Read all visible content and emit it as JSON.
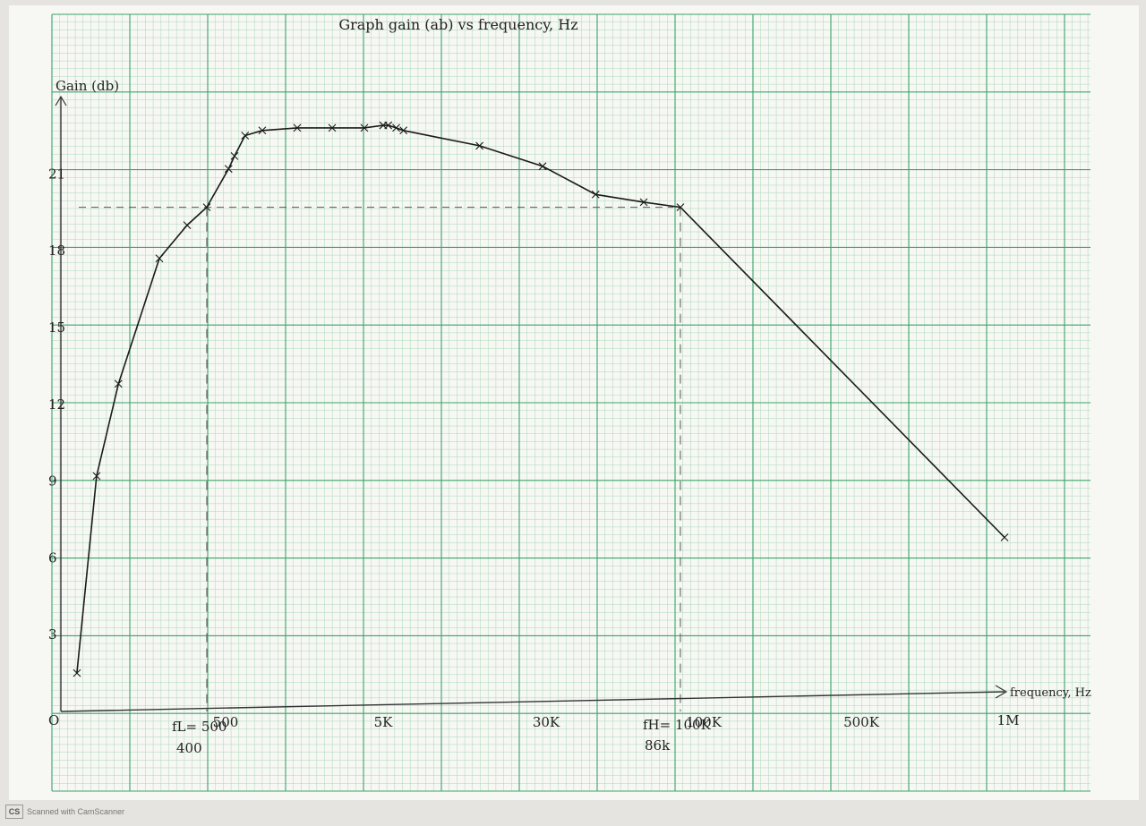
{
  "chart_data": {
    "type": "line",
    "title": "Graph gain (ab) vs frequency, Hz",
    "xlabel": "frequency, Hz",
    "ylabel": "Gain (db)",
    "x_scale": "log",
    "x_tick_labels": [
      "500",
      "5K",
      "30K",
      "100K",
      "500K",
      "1M"
    ],
    "x_tick_values": [
      500,
      5000,
      30000,
      100000,
      500000,
      1000000
    ],
    "y_ticks": [
      0,
      3,
      6,
      9,
      12,
      15,
      18,
      21
    ],
    "ylim": [
      0,
      25
    ],
    "grid": true,
    "series": [
      {
        "x": [
          60,
          80,
          110,
          200,
          300,
          400,
          550,
          600,
          700,
          900,
          1500,
          2500,
          4000,
          5200,
          5500,
          6000,
          6500,
          15000,
          30000,
          45000,
          65000,
          86000,
          1000000
        ],
        "y": [
          1.5,
          9.2,
          12.8,
          17.7,
          19.0,
          19.7,
          21.2,
          21.7,
          22.5,
          22.7,
          22.8,
          22.8,
          22.8,
          22.9,
          22.9,
          22.8,
          22.7,
          22.1,
          21.3,
          20.2,
          19.9,
          19.7,
          6.8
        ]
      }
    ],
    "markers": [
      {
        "label_top": "fL= 500",
        "label_bottom": "400",
        "x": 400,
        "y": 19.7
      },
      {
        "label_top": "fH= 100K",
        "label_bottom": "86k",
        "x": 86000,
        "y": 19.7
      }
    ],
    "origin_label": "O"
  },
  "scanner": {
    "logo": "CS",
    "text": "Scanned with CamScanner"
  }
}
